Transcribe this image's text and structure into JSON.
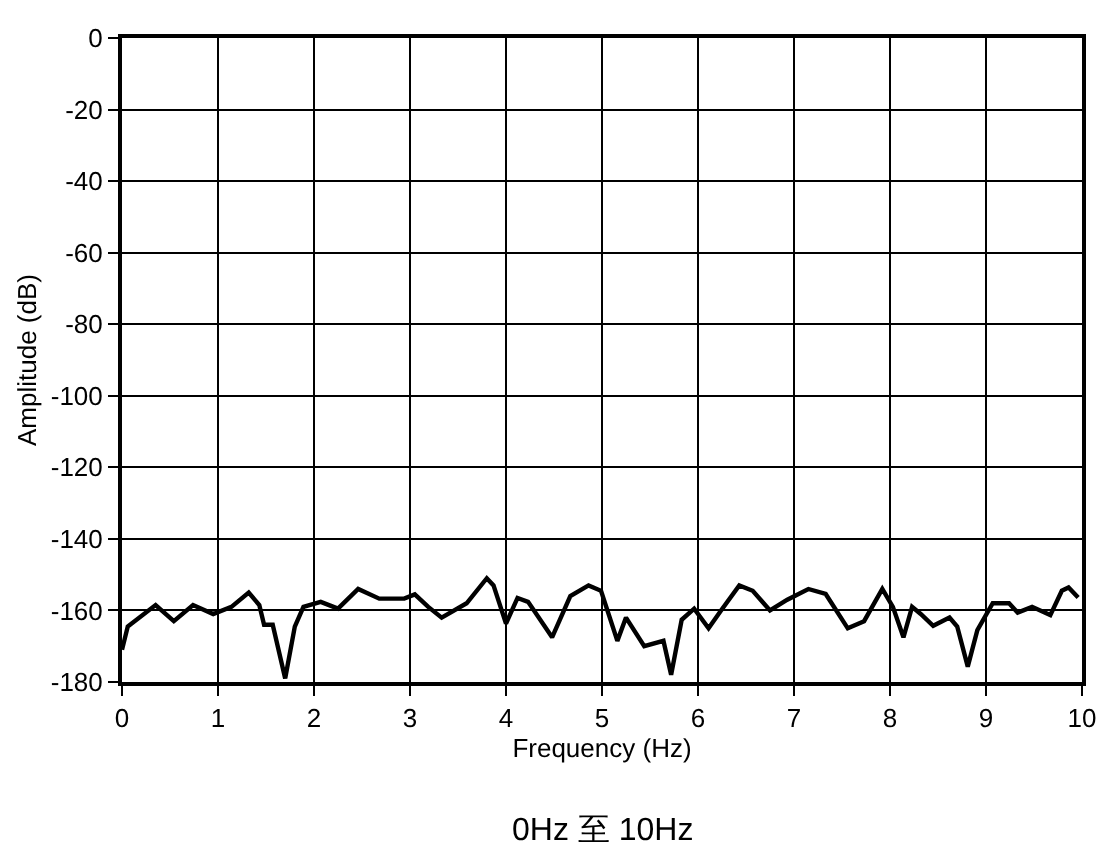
{
  "chart_data": {
    "type": "line",
    "xlabel": "Frequency (Hz)",
    "ylabel": "Amplitude (dB)",
    "annotations": [
      "0Hz 至 10Hz"
    ],
    "x": [
      0,
      0.06,
      0.35,
      0.54,
      0.74,
      0.95,
      1.14,
      1.32,
      1.43,
      1.48,
      1.57,
      1.7,
      1.8,
      1.89,
      2.07,
      2.25,
      2.46,
      2.68,
      2.94,
      3.05,
      3.19,
      3.33,
      3.59,
      3.8,
      3.87,
      4.0,
      4.12,
      4.23,
      4.48,
      4.67,
      4.86,
      4.99,
      5.16,
      5.25,
      5.44,
      5.64,
      5.72,
      5.83,
      5.96,
      6.11,
      6.24,
      6.43,
      6.57,
      6.75,
      6.93,
      7.15,
      7.33,
      7.56,
      7.73,
      7.92,
      8.03,
      8.14,
      8.23,
      8.32,
      8.45,
      8.62,
      8.7,
      8.81,
      8.91,
      9.07,
      9.24,
      9.33,
      9.48,
      9.67,
      9.79,
      9.86,
      9.96
    ],
    "series": [
      {
        "color": "#000000",
        "values": [
          -171,
          -164.5,
          -158.5,
          -163,
          -158.5,
          -161,
          -159,
          -155,
          -158.5,
          -164,
          -164,
          -179,
          -164.5,
          -159,
          -157.6,
          -159.5,
          -154,
          -156.7,
          -156.7,
          -155.5,
          -159,
          -162,
          -158,
          -151,
          -153,
          -163.7,
          -156.5,
          -157.6,
          -167.5,
          -156,
          -153,
          -154.5,
          -168.5,
          -162,
          -170,
          -168.5,
          -178,
          -162.6,
          -159.5,
          -165,
          -160,
          -153,
          -154.5,
          -160,
          -157,
          -154,
          -155.4,
          -165,
          -163,
          -154,
          -159,
          -167.5,
          -159,
          -161,
          -164.3,
          -162,
          -164.5,
          -175.7,
          -165.5,
          -158,
          -158,
          -160.6,
          -159,
          -161.3,
          -154.5,
          -153.6,
          -156.4
        ]
      }
    ],
    "xlim": [
      0,
      10
    ],
    "xticks": [
      0,
      1,
      2,
      3,
      4,
      5,
      6,
      7,
      8,
      9,
      10
    ],
    "ylim": [
      -180,
      0
    ],
    "yticks": [
      -180,
      -160,
      -140,
      -120,
      -100,
      -80,
      -60,
      -40,
      -20,
      0
    ],
    "grid": true,
    "marker": "none",
    "line_style": "solid"
  }
}
